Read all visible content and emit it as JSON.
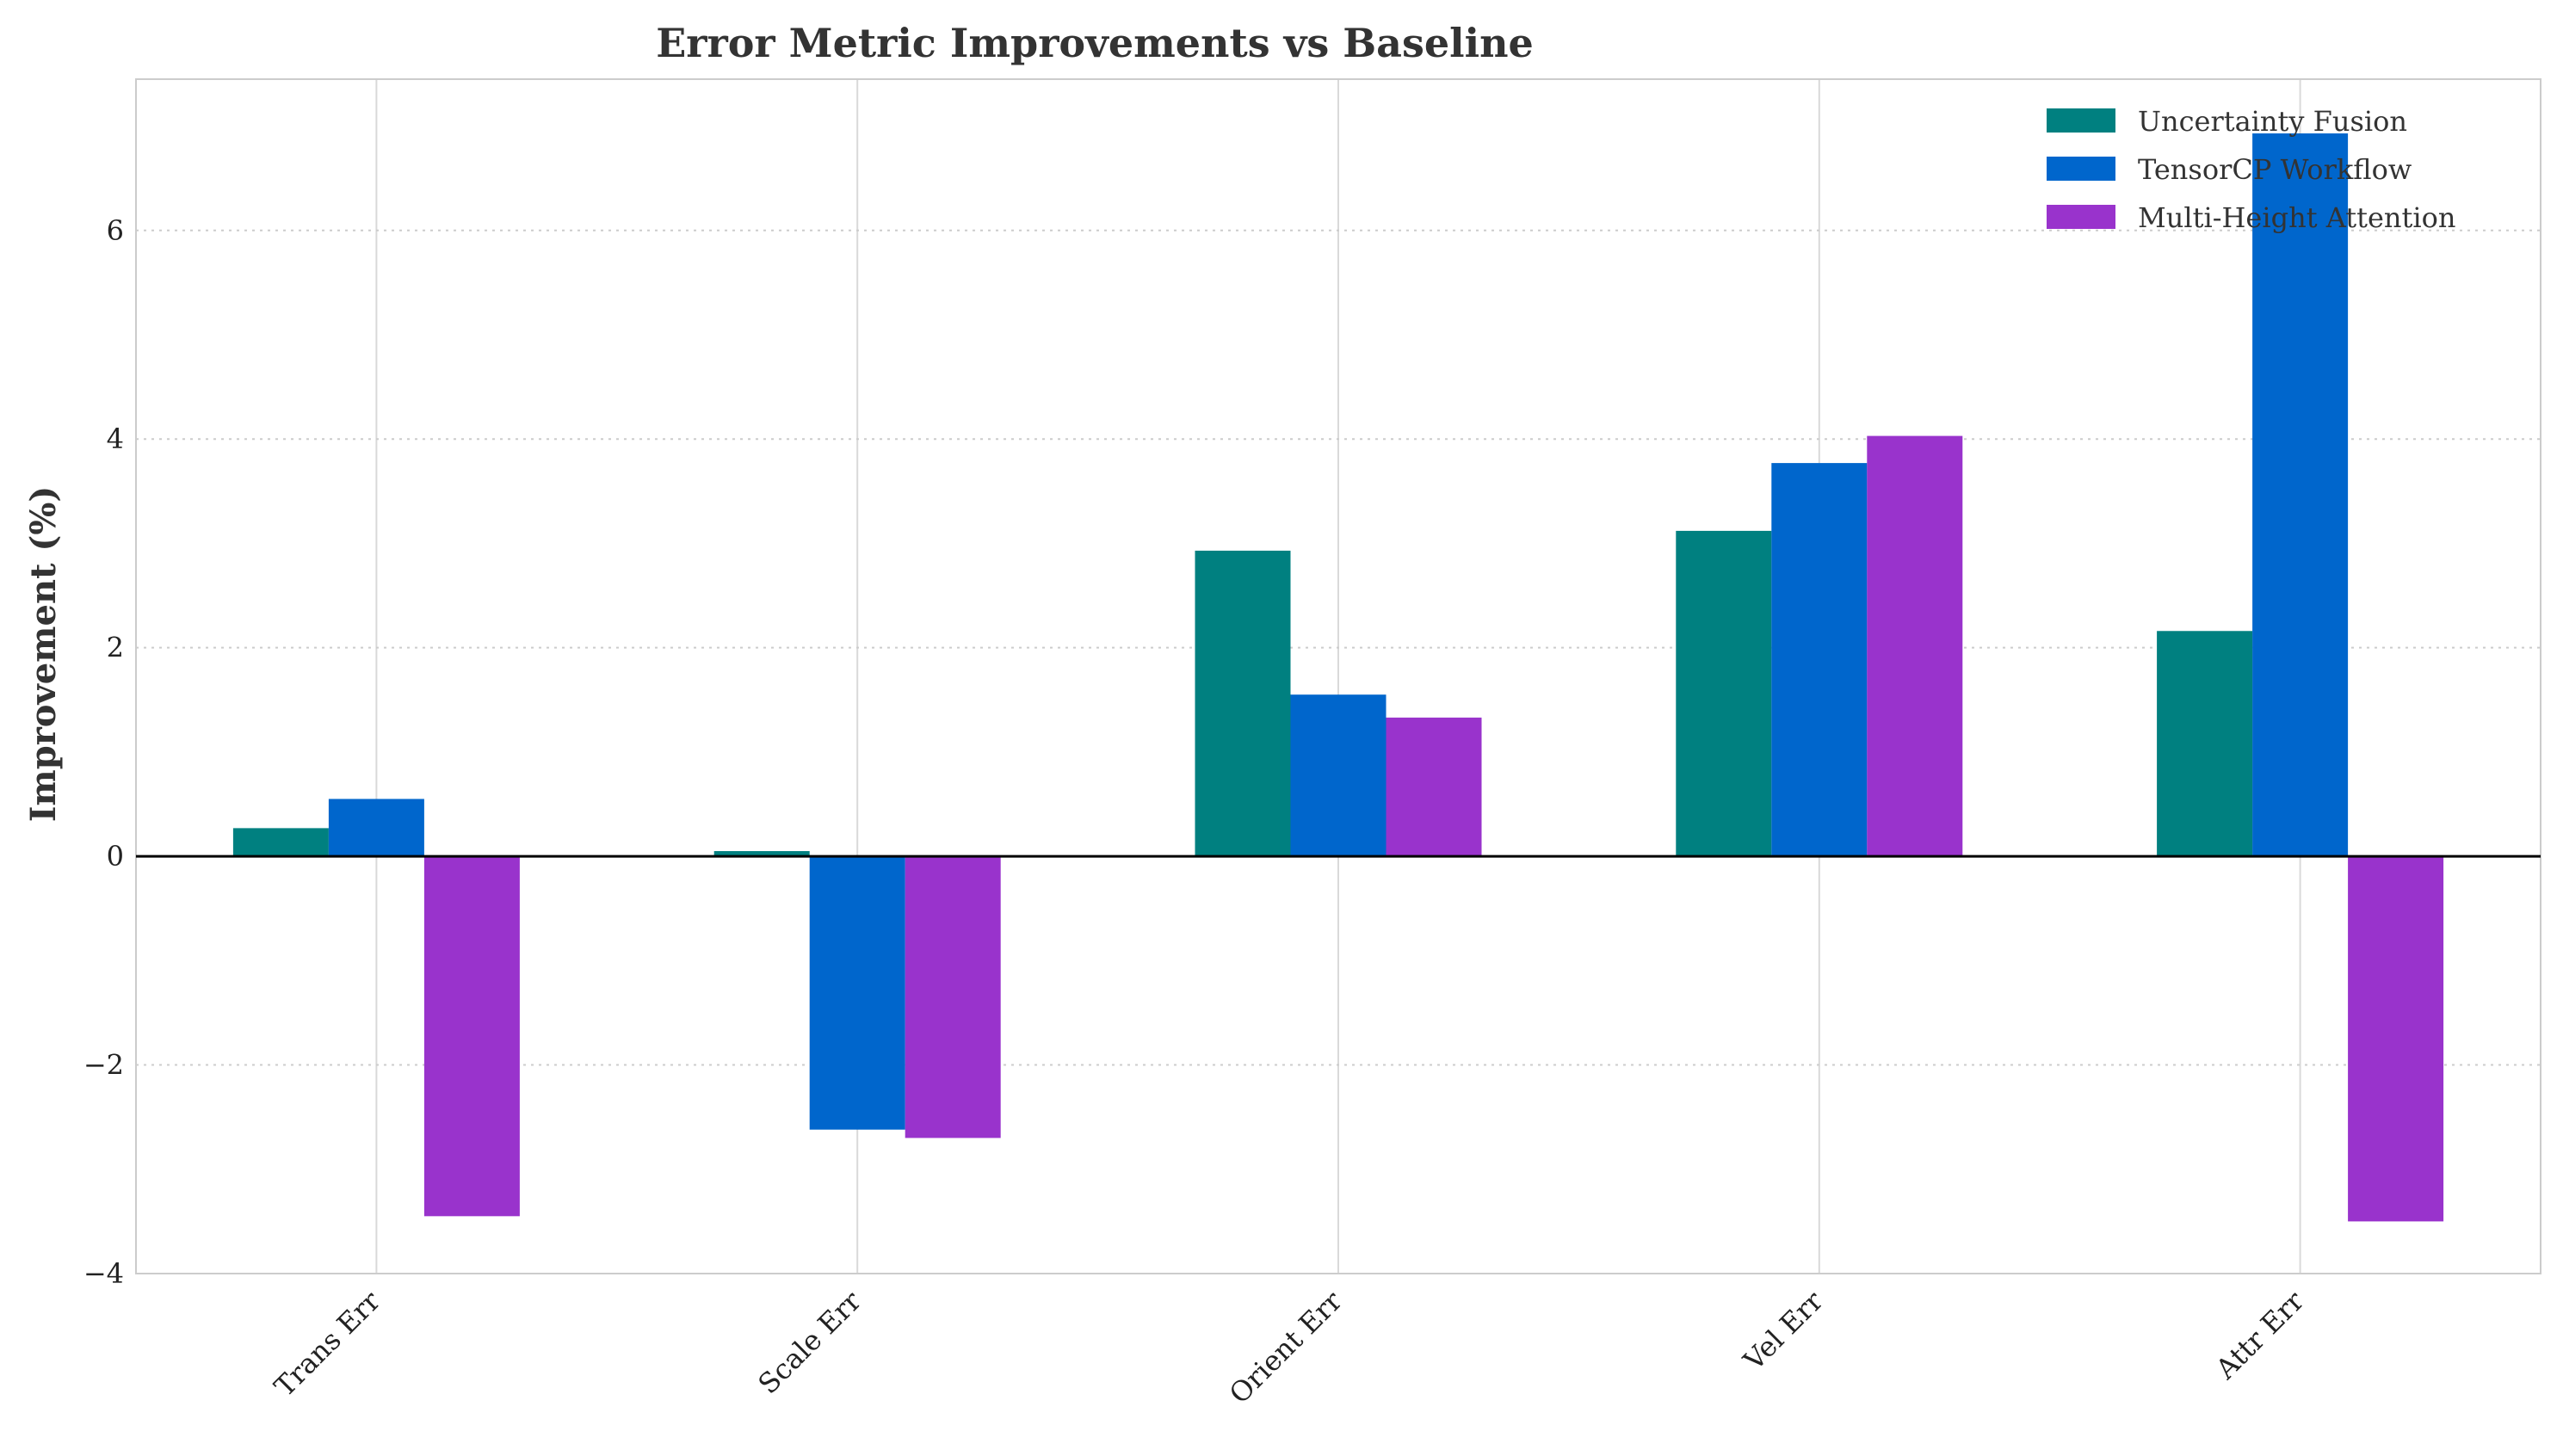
{
  "chart_data": {
    "type": "bar",
    "title": "Error Metric Improvements vs Baseline",
    "xlabel": "",
    "ylabel": "Improvement (%)",
    "categories": [
      "Trans Err",
      "Scale Err",
      "Orient Err",
      "Vel Err",
      "Attr Err"
    ],
    "series": [
      {
        "name": "Uncertainty Fusion",
        "color": "#008080",
        "values": [
          0.27,
          0.05,
          2.93,
          3.12,
          2.16
        ]
      },
      {
        "name": "TensorCP Workflow",
        "color": "#0066CC",
        "values": [
          0.55,
          -2.62,
          1.55,
          3.77,
          6.93
        ]
      },
      {
        "name": "Multi-Height Attention",
        "color": "#9933CC",
        "values": [
          -3.45,
          -2.7,
          1.33,
          4.03,
          -3.5
        ]
      }
    ],
    "ylim": [
      -4,
      7.45
    ],
    "yticks": [
      -4,
      -2,
      0,
      2,
      4,
      6
    ],
    "grid": true,
    "legend_position": "top-right"
  }
}
